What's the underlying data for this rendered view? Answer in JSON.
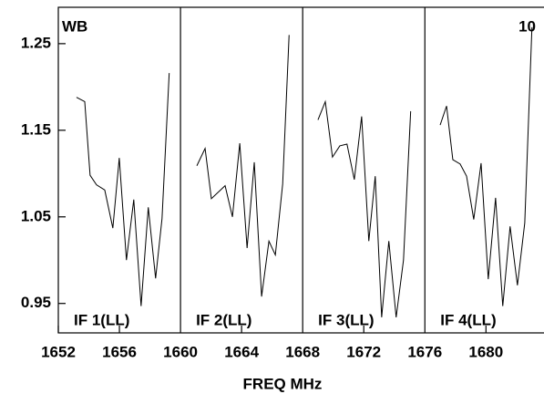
{
  "chart_data": {
    "type": "line",
    "annotations": [
      "WB",
      "10"
    ],
    "xlabel": "FREQ MHz",
    "xlim": [
      1652,
      1683.8
    ],
    "xticks": [
      1652,
      1656,
      1660,
      1664,
      1668,
      1672,
      1676,
      1680
    ],
    "ylim": [
      0.916,
      1.292
    ],
    "yticks": [
      0.95,
      1.05,
      1.15,
      1.25
    ],
    "color": "#000000",
    "series": [
      {
        "name": "IF 1(LL)",
        "x": [
          1653.19,
          1653.73,
          1654.08,
          1654.5,
          1655.04,
          1655.57,
          1655.99,
          1656.46,
          1656.94,
          1657.42,
          1657.89,
          1658.37,
          1658.79,
          1659.26
        ],
        "values": [
          1.188,
          1.183,
          1.098,
          1.087,
          1.081,
          1.037,
          1.118,
          1.0,
          1.07,
          0.947,
          1.061,
          0.979,
          1.048,
          1.216
        ]
      },
      {
        "name": "IF 2(LL)",
        "x": [
          1661.07,
          1661.61,
          1662.02,
          1662.92,
          1663.4,
          1663.88,
          1664.36,
          1664.83,
          1665.31,
          1665.79,
          1666.21,
          1666.69,
          1667.11
        ],
        "values": [
          1.109,
          1.129,
          1.071,
          1.086,
          1.05,
          1.135,
          1.014,
          1.113,
          0.958,
          1.022,
          1.006,
          1.088,
          1.26
        ]
      },
      {
        "name": "IF 3(LL)",
        "x": [
          1669.0,
          1669.48,
          1669.95,
          1670.43,
          1670.9,
          1671.38,
          1671.86,
          1672.33,
          1672.75,
          1673.17,
          1673.64,
          1674.12,
          1674.6,
          1675.07
        ],
        "values": [
          1.162,
          1.183,
          1.119,
          1.132,
          1.134,
          1.093,
          1.166,
          1.022,
          1.097,
          0.934,
          1.022,
          0.934,
          1.0,
          1.172
        ]
      },
      {
        "name": "IF 4(LL)",
        "x": [
          1677.0,
          1677.42,
          1677.83,
          1678.31,
          1678.73,
          1679.2,
          1679.68,
          1680.15,
          1680.63,
          1681.1,
          1681.58,
          1682.06,
          1682.54,
          1683.01
        ],
        "values": [
          1.156,
          1.178,
          1.116,
          1.111,
          1.097,
          1.047,
          1.112,
          0.978,
          1.072,
          0.947,
          1.039,
          0.971,
          1.043,
          1.269
        ]
      }
    ]
  }
}
